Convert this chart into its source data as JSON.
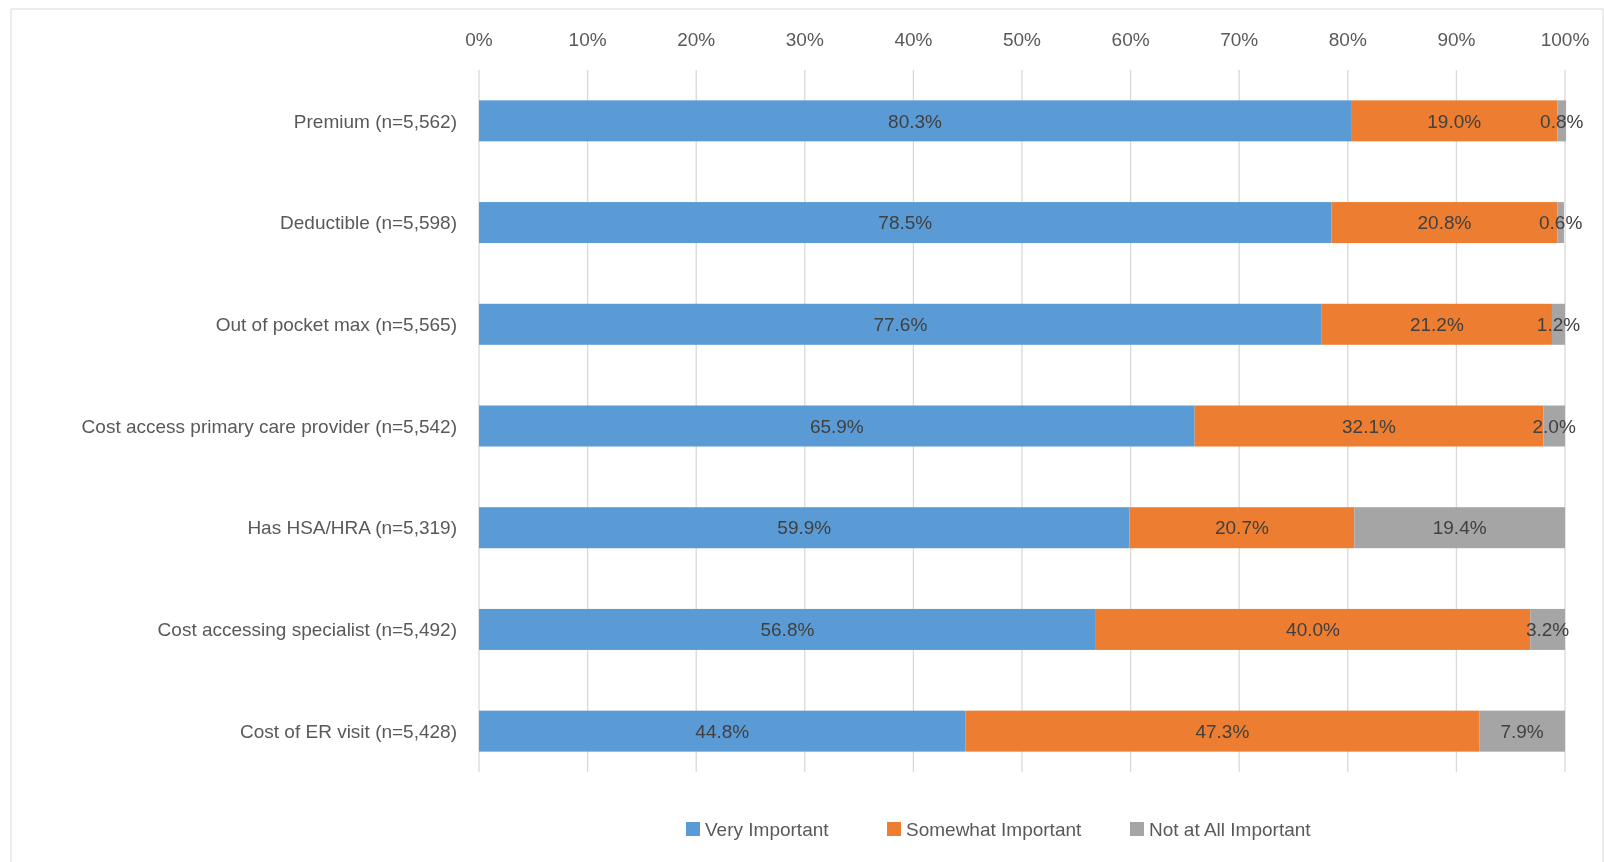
{
  "chart_data": {
    "type": "bar",
    "orientation": "horizontal",
    "stacked": true,
    "categories": [
      "Premium (n=5,562)",
      "Deductible (n=5,598)",
      "Out of pocket max (n=5,565)",
      "Cost access primary care provider (n=5,542)",
      "Has HSA/HRA (n=5,319)",
      "Cost accessing specialist (n=5,492)",
      "Cost of ER visit (n=5,428)"
    ],
    "series": [
      {
        "name": "Very Important",
        "color": "#5b9bd5",
        "values": [
          80.3,
          78.5,
          77.6,
          65.9,
          59.9,
          56.8,
          44.8
        ],
        "value_labels": [
          "80.3%",
          "78.5%",
          "77.6%",
          "65.9%",
          "59.9%",
          "56.8%",
          "44.8%"
        ]
      },
      {
        "name": "Somewhat Important",
        "color": "#ed7d31",
        "values": [
          19.0,
          20.8,
          21.2,
          32.1,
          20.7,
          40.0,
          47.3
        ],
        "value_labels": [
          "19.0%",
          "20.8%",
          "21.2%",
          "32.1%",
          "20.7%",
          "40.0%",
          "47.3%"
        ]
      },
      {
        "name": "Not at All Important",
        "color": "#a5a5a5",
        "values": [
          0.8,
          0.6,
          1.2,
          2.0,
          19.4,
          3.2,
          7.9
        ],
        "value_labels": [
          "0.8%",
          "0.6%",
          "1.2%",
          "2.0%",
          "19.4%",
          "3.2%",
          "7.9%"
        ]
      }
    ],
    "xlim": [
      0,
      100
    ],
    "xticks": [
      {
        "value": 0,
        "label": "0%"
      },
      {
        "value": 10,
        "label": "10%"
      },
      {
        "value": 20,
        "label": "20%"
      },
      {
        "value": 30,
        "label": "30%"
      },
      {
        "value": 40,
        "label": "40%"
      },
      {
        "value": 50,
        "label": "50%"
      },
      {
        "value": 60,
        "label": "60%"
      },
      {
        "value": 70,
        "label": "70%"
      },
      {
        "value": 80,
        "label": "80%"
      },
      {
        "value": 90,
        "label": "90%"
      },
      {
        "value": 100,
        "label": "100%"
      }
    ],
    "grid": "x",
    "legend": "bottom"
  }
}
